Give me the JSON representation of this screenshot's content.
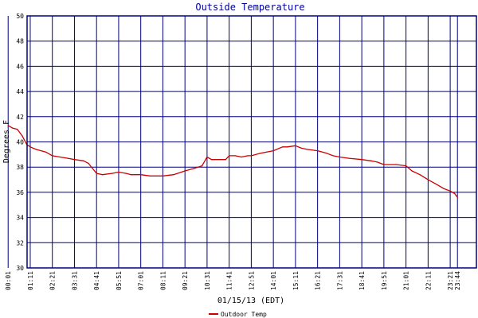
{
  "chart_data": {
    "type": "line",
    "title": "Outside Temperature",
    "xlabel": "01/15/13 (EDT)",
    "ylabel": "Degrees F",
    "ylim": [
      30,
      50
    ],
    "ytick_labels": [
      "30",
      "32",
      "34",
      "36",
      "38",
      "40",
      "42",
      "44",
      "46",
      "48",
      "50"
    ],
    "xlim_minutes": [
      61,
      1484
    ],
    "xtick_labels": [
      "00:01",
      "01:11",
      "02:21",
      "03:31",
      "04:41",
      "05:51",
      "07:01",
      "08:11",
      "09:21",
      "10:31",
      "11:41",
      "12:51",
      "14:01",
      "15:11",
      "16:21",
      "17:31",
      "18:41",
      "19:51",
      "21:01",
      "22:11",
      "23:21",
      "23:44"
    ],
    "grid": true,
    "legend_position": "bottom-left",
    "colors": {
      "grid": "#000080",
      "series": "#cc0000",
      "title": "#000099"
    },
    "series": [
      {
        "name": "Outdoor Temp",
        "x": [
          "00:01",
          "00:15",
          "00:30",
          "00:45",
          "01:00",
          "01:11",
          "01:30",
          "02:00",
          "02:21",
          "02:45",
          "03:10",
          "03:31",
          "04:00",
          "04:15",
          "04:41",
          "05:00",
          "05:30",
          "05:51",
          "06:15",
          "06:30",
          "07:01",
          "07:30",
          "08:11",
          "08:45",
          "09:21",
          "09:50",
          "10:15",
          "10:31",
          "10:45",
          "11:10",
          "11:30",
          "11:41",
          "12:00",
          "12:20",
          "12:40",
          "12:51",
          "13:20",
          "13:40",
          "14:01",
          "14:30",
          "14:45",
          "15:11",
          "15:30",
          "15:50",
          "16:21",
          "16:50",
          "17:10",
          "17:31",
          "18:00",
          "18:41",
          "19:10",
          "19:30",
          "19:51",
          "20:30",
          "21:01",
          "21:20",
          "21:45",
          "22:11",
          "22:40",
          "23:00",
          "23:21",
          "23:35",
          "23:44"
        ],
        "y": [
          41.3,
          41.1,
          41.0,
          40.5,
          39.8,
          39.6,
          39.4,
          39.2,
          38.9,
          38.8,
          38.7,
          38.6,
          38.5,
          38.3,
          37.5,
          37.4,
          37.5,
          37.6,
          37.5,
          37.4,
          37.4,
          37.3,
          37.3,
          37.4,
          37.7,
          37.9,
          38.1,
          38.8,
          38.6,
          38.6,
          38.6,
          38.9,
          38.9,
          38.8,
          38.9,
          38.9,
          39.1,
          39.2,
          39.3,
          39.6,
          39.6,
          39.7,
          39.5,
          39.4,
          39.3,
          39.1,
          38.9,
          38.8,
          38.7,
          38.6,
          38.5,
          38.4,
          38.2,
          38.2,
          38.1,
          37.7,
          37.4,
          37.0,
          36.6,
          36.3,
          36.1,
          35.9,
          35.6
        ]
      }
    ]
  }
}
